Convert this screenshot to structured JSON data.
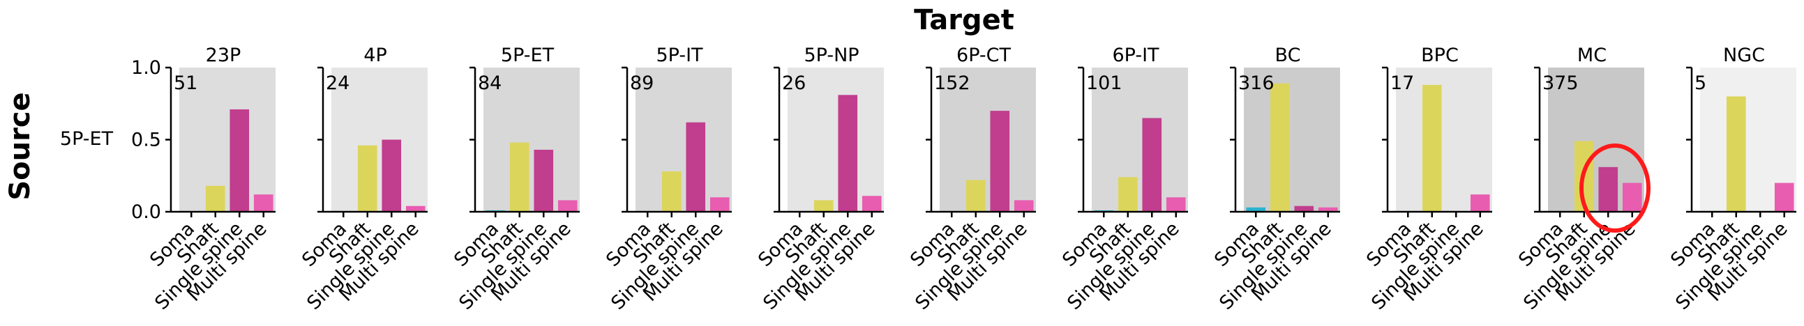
{
  "figure": {
    "title": "Target",
    "ylabel": "Source",
    "row_label": "5P-ET"
  },
  "chart_data": {
    "type": "bar",
    "categories": [
      "Soma",
      "Shaft",
      "Single spine",
      "Multi spine"
    ],
    "category_colors": [
      "#2ab3cf",
      "#dcd55c",
      "#c13d8e",
      "#e85db0"
    ],
    "ylim": [
      0,
      1.0
    ],
    "yticks": [
      "0.0",
      "0.5",
      "1.0"
    ],
    "panels": [
      {
        "title": "23P",
        "count": "51",
        "bg": "#dddddd",
        "values": [
          0.0,
          0.18,
          0.71,
          0.12
        ]
      },
      {
        "title": "4P",
        "count": "24",
        "bg": "#e5e5e5",
        "values": [
          0.0,
          0.46,
          0.5,
          0.04
        ]
      },
      {
        "title": "5P-ET",
        "count": "84",
        "bg": "#d8d8d8",
        "values": [
          0.01,
          0.48,
          0.43,
          0.08
        ]
      },
      {
        "title": "5P-IT",
        "count": "89",
        "bg": "#d8d8d8",
        "values": [
          0.0,
          0.28,
          0.62,
          0.1
        ]
      },
      {
        "title": "5P-NP",
        "count": "26",
        "bg": "#e5e5e5",
        "values": [
          0.0,
          0.08,
          0.81,
          0.11
        ]
      },
      {
        "title": "6P-CT",
        "count": "152",
        "bg": "#d3d3d3",
        "values": [
          0.0,
          0.22,
          0.7,
          0.08
        ]
      },
      {
        "title": "6P-IT",
        "count": "101",
        "bg": "#d8d8d8",
        "values": [
          0.01,
          0.24,
          0.65,
          0.1
        ]
      },
      {
        "title": "BC",
        "count": "316",
        "bg": "#cccccc",
        "values": [
          0.03,
          0.89,
          0.04,
          0.03
        ]
      },
      {
        "title": "BPC",
        "count": "17",
        "bg": "#e6e6e6",
        "values": [
          0.0,
          0.88,
          0.0,
          0.12
        ]
      },
      {
        "title": "MC",
        "count": "375",
        "bg": "#c8c8c8",
        "values": [
          0.0,
          0.49,
          0.31,
          0.2
        ]
      },
      {
        "title": "NGC",
        "count": "5",
        "bg": "#f0f0f0",
        "values": [
          0.0,
          0.8,
          0.0,
          0.2
        ]
      }
    ]
  }
}
